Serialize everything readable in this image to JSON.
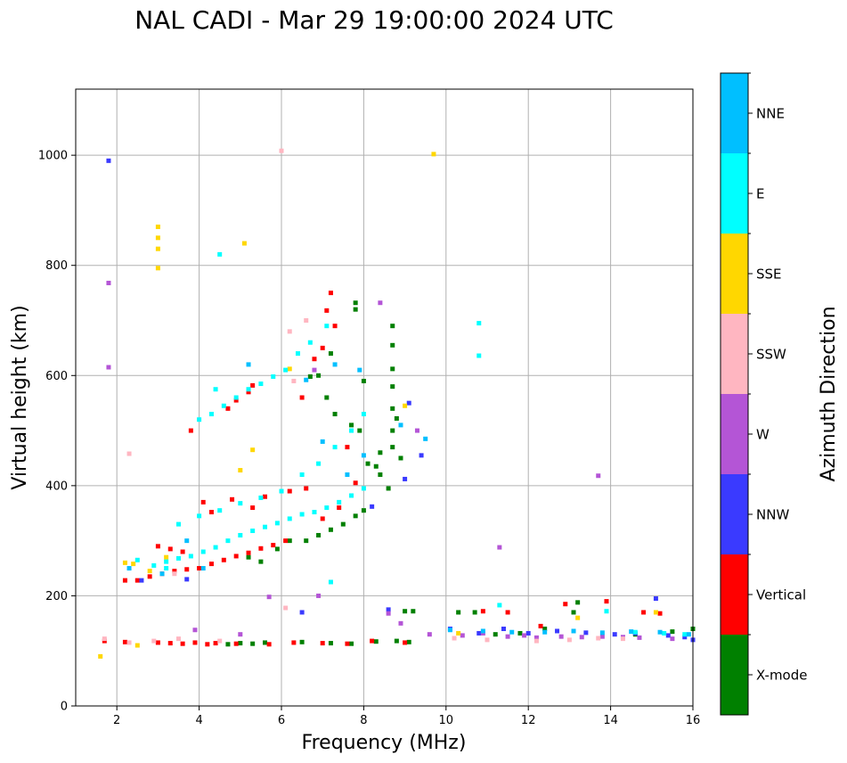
{
  "chart_data": {
    "type": "scatter",
    "title": "NAL CADI - Mar 29 19:00:00 2024 UTC",
    "xlabel": "Frequency (MHz)",
    "ylabel": "Virtual height (km)",
    "xlim": [
      1,
      16
    ],
    "ylim": [
      0,
      1120
    ],
    "xticks": [
      2,
      4,
      6,
      8,
      10,
      12,
      14,
      16
    ],
    "yticks": [
      0,
      200,
      400,
      600,
      800,
      1000
    ],
    "grid": true,
    "colorbar": {
      "title": "Azimuth Direction",
      "categories": [
        {
          "name": "X-mode",
          "color": "#008000"
        },
        {
          "name": "Vertical",
          "color": "#ff0000"
        },
        {
          "name": "NNW",
          "color": "#3a3aff"
        },
        {
          "name": "W",
          "color": "#b455d6"
        },
        {
          "name": "SSW",
          "color": "#ffb6c1"
        },
        {
          "name": "SSE",
          "color": "#ffd700"
        },
        {
          "name": "E",
          "color": "#00ffff"
        },
        {
          "name": "NNE",
          "color": "#00bfff"
        }
      ]
    },
    "series": [
      {
        "name": "X-mode",
        "color": "#008000",
        "points": [
          [
            4.7,
            112
          ],
          [
            5.0,
            114
          ],
          [
            5.3,
            113
          ],
          [
            5.6,
            115
          ],
          [
            6.5,
            116
          ],
          [
            7.2,
            114
          ],
          [
            7.7,
            113
          ],
          [
            8.3,
            117
          ],
          [
            8.8,
            118
          ],
          [
            9.1,
            116
          ],
          [
            5.2,
            270
          ],
          [
            5.5,
            262
          ],
          [
            5.9,
            285
          ],
          [
            6.2,
            300
          ],
          [
            6.6,
            300
          ],
          [
            6.9,
            310
          ],
          [
            7.2,
            320
          ],
          [
            7.5,
            330
          ],
          [
            7.8,
            345
          ],
          [
            8.0,
            355
          ],
          [
            6.7,
            598
          ],
          [
            6.9,
            600
          ],
          [
            7.2,
            640
          ],
          [
            7.8,
            732
          ],
          [
            7.8,
            720
          ],
          [
            8.0,
            590
          ],
          [
            8.3,
            435
          ],
          [
            8.4,
            420
          ],
          [
            8.6,
            395
          ],
          [
            8.7,
            470
          ],
          [
            8.7,
            500
          ],
          [
            8.7,
            540
          ],
          [
            8.7,
            580
          ],
          [
            8.7,
            612
          ],
          [
            8.7,
            655
          ],
          [
            8.7,
            690
          ],
          [
            8.8,
            522
          ],
          [
            8.9,
            450
          ],
          [
            9.0,
            172
          ],
          [
            9.2,
            172
          ],
          [
            10.3,
            170
          ],
          [
            10.7,
            170
          ],
          [
            11.2,
            130
          ],
          [
            11.8,
            132
          ],
          [
            12.4,
            140
          ],
          [
            13.1,
            170
          ],
          [
            13.2,
            188
          ],
          [
            14.6,
            130
          ],
          [
            15.5,
            135
          ],
          [
            16.0,
            140
          ],
          [
            7.1,
            560
          ],
          [
            7.3,
            530
          ],
          [
            7.7,
            510
          ],
          [
            7.9,
            500
          ],
          [
            8.4,
            460
          ],
          [
            8.1,
            440
          ]
        ]
      },
      {
        "name": "Vertical",
        "color": "#ff0000",
        "points": [
          [
            1.7,
            118
          ],
          [
            2.2,
            116
          ],
          [
            3.0,
            115
          ],
          [
            3.3,
            114
          ],
          [
            3.6,
            113
          ],
          [
            3.9,
            115
          ],
          [
            4.2,
            112
          ],
          [
            4.4,
            114
          ],
          [
            4.9,
            113
          ],
          [
            5.7,
            112
          ],
          [
            6.3,
            115
          ],
          [
            7.0,
            114
          ],
          [
            7.6,
            113
          ],
          [
            8.2,
            118
          ],
          [
            9.0,
            115
          ],
          [
            2.2,
            228
          ],
          [
            2.5,
            228
          ],
          [
            2.8,
            235
          ],
          [
            3.1,
            240
          ],
          [
            3.4,
            245
          ],
          [
            3.7,
            248
          ],
          [
            4.0,
            250
          ],
          [
            4.3,
            258
          ],
          [
            4.6,
            265
          ],
          [
            4.9,
            272
          ],
          [
            5.2,
            278
          ],
          [
            5.5,
            286
          ],
          [
            5.8,
            292
          ],
          [
            6.1,
            300
          ],
          [
            3.0,
            290
          ],
          [
            3.3,
            285
          ],
          [
            3.6,
            280
          ],
          [
            4.1,
            370
          ],
          [
            4.3,
            352
          ],
          [
            4.8,
            375
          ],
          [
            5.3,
            360
          ],
          [
            5.6,
            380
          ],
          [
            6.2,
            390
          ],
          [
            6.6,
            395
          ],
          [
            7.0,
            340
          ],
          [
            7.4,
            360
          ],
          [
            7.8,
            405
          ],
          [
            3.8,
            500
          ],
          [
            4.7,
            540
          ],
          [
            4.9,
            555
          ],
          [
            5.2,
            570
          ],
          [
            5.3,
            582
          ],
          [
            6.5,
            560
          ],
          [
            6.8,
            630
          ],
          [
            7.0,
            650
          ],
          [
            7.1,
            718
          ],
          [
            7.3,
            690
          ],
          [
            7.6,
            470
          ],
          [
            7.2,
            750
          ],
          [
            12.9,
            185
          ],
          [
            13.9,
            190
          ],
          [
            14.8,
            170
          ],
          [
            15.2,
            168
          ],
          [
            12.3,
            145
          ],
          [
            11.5,
            170
          ],
          [
            10.9,
            172
          ]
        ]
      },
      {
        "name": "NNW",
        "color": "#3a3aff",
        "points": [
          [
            1.8,
            990
          ],
          [
            2.6,
            228
          ],
          [
            3.7,
            230
          ],
          [
            8.6,
            175
          ],
          [
            9.1,
            550
          ],
          [
            9.0,
            412
          ],
          [
            9.4,
            455
          ],
          [
            10.1,
            140
          ],
          [
            10.8,
            132
          ],
          [
            11.4,
            140
          ],
          [
            12.0,
            132
          ],
          [
            12.7,
            136
          ],
          [
            13.4,
            133
          ],
          [
            14.1,
            130
          ],
          [
            14.6,
            132
          ],
          [
            15.1,
            195
          ],
          [
            15.4,
            128
          ],
          [
            15.8,
            125
          ],
          [
            16.0,
            120
          ],
          [
            6.5,
            170
          ],
          [
            8.2,
            362
          ]
        ]
      },
      {
        "name": "W",
        "color": "#b455d6",
        "points": [
          [
            1.8,
            768
          ],
          [
            1.8,
            615
          ],
          [
            3.9,
            138
          ],
          [
            5.7,
            198
          ],
          [
            6.9,
            200
          ],
          [
            8.6,
            168
          ],
          [
            8.9,
            150
          ],
          [
            9.3,
            500
          ],
          [
            9.6,
            130
          ],
          [
            10.4,
            128
          ],
          [
            10.9,
            132
          ],
          [
            11.5,
            126
          ],
          [
            11.9,
            128
          ],
          [
            12.2,
            124
          ],
          [
            12.8,
            126
          ],
          [
            13.3,
            125
          ],
          [
            13.8,
            126
          ],
          [
            14.3,
            125
          ],
          [
            14.7,
            124
          ],
          [
            15.5,
            122
          ],
          [
            11.3,
            288
          ],
          [
            13.7,
            418
          ],
          [
            8.4,
            732
          ],
          [
            5.0,
            130
          ],
          [
            6.8,
            610
          ]
        ]
      },
      {
        "name": "SSW",
        "color": "#ffb6c1",
        "points": [
          [
            1.7,
            122
          ],
          [
            2.3,
            115
          ],
          [
            2.9,
            118
          ],
          [
            3.5,
            122
          ],
          [
            4.5,
            118
          ],
          [
            6.0,
            1008
          ],
          [
            6.2,
            680
          ],
          [
            6.6,
            700
          ],
          [
            10.2,
            123
          ],
          [
            11.0,
            120
          ],
          [
            12.2,
            118
          ],
          [
            13.0,
            120
          ],
          [
            13.7,
            123
          ],
          [
            14.3,
            122
          ],
          [
            2.3,
            458
          ],
          [
            6.1,
            178
          ],
          [
            6.3,
            590
          ],
          [
            3.4,
            240
          ]
        ]
      },
      {
        "name": "SSE",
        "color": "#ffd700",
        "points": [
          [
            1.6,
            90
          ],
          [
            2.4,
            258
          ],
          [
            2.8,
            245
          ],
          [
            3.0,
            870
          ],
          [
            3.0,
            850
          ],
          [
            3.0,
            830
          ],
          [
            3.0,
            795
          ],
          [
            5.1,
            840
          ],
          [
            9.7,
            1002
          ],
          [
            5.0,
            428
          ],
          [
            5.3,
            465
          ],
          [
            9.0,
            545
          ],
          [
            6.2,
            612
          ],
          [
            2.5,
            110
          ],
          [
            3.2,
            270
          ],
          [
            10.3,
            132
          ],
          [
            15.1,
            170
          ],
          [
            2.2,
            260
          ],
          [
            13.2,
            160
          ]
        ]
      },
      {
        "name": "E",
        "color": "#00ffff",
        "points": [
          [
            2.5,
            265
          ],
          [
            2.9,
            255
          ],
          [
            3.2,
            262
          ],
          [
            3.5,
            268
          ],
          [
            3.8,
            272
          ],
          [
            4.1,
            280
          ],
          [
            4.4,
            288
          ],
          [
            4.7,
            300
          ],
          [
            5.0,
            310
          ],
          [
            5.3,
            318
          ],
          [
            5.6,
            325
          ],
          [
            5.9,
            332
          ],
          [
            6.2,
            340
          ],
          [
            6.5,
            348
          ],
          [
            6.8,
            352
          ],
          [
            7.1,
            360
          ],
          [
            7.4,
            370
          ],
          [
            7.7,
            382
          ],
          [
            8.0,
            395
          ],
          [
            3.5,
            330
          ],
          [
            4.0,
            345
          ],
          [
            4.5,
            355
          ],
          [
            5.0,
            368
          ],
          [
            5.5,
            378
          ],
          [
            6.0,
            390
          ],
          [
            6.5,
            420
          ],
          [
            6.9,
            440
          ],
          [
            7.3,
            470
          ],
          [
            7.7,
            500
          ],
          [
            8.0,
            530
          ],
          [
            4.0,
            520
          ],
          [
            4.3,
            530
          ],
          [
            4.6,
            545
          ],
          [
            4.9,
            560
          ],
          [
            5.2,
            575
          ],
          [
            5.5,
            585
          ],
          [
            5.8,
            598
          ],
          [
            6.1,
            610
          ],
          [
            4.4,
            575
          ],
          [
            4.5,
            820
          ],
          [
            6.4,
            640
          ],
          [
            6.7,
            660
          ],
          [
            7.1,
            690
          ],
          [
            10.8,
            695
          ],
          [
            10.8,
            636
          ],
          [
            7.2,
            225
          ],
          [
            3.2,
            250
          ],
          [
            13.9,
            172
          ],
          [
            14.6,
            134
          ],
          [
            15.3,
            132
          ],
          [
            15.8,
            130
          ],
          [
            11.3,
            183
          ]
        ]
      },
      {
        "name": "NNE",
        "color": "#00bfff",
        "points": [
          [
            2.3,
            250
          ],
          [
            3.1,
            240
          ],
          [
            3.7,
            300
          ],
          [
            4.1,
            250
          ],
          [
            5.2,
            620
          ],
          [
            6.6,
            592
          ],
          [
            7.3,
            620
          ],
          [
            7.9,
            610
          ],
          [
            8.9,
            510
          ],
          [
            9.5,
            485
          ],
          [
            10.1,
            138
          ],
          [
            10.9,
            136
          ],
          [
            11.6,
            134
          ],
          [
            12.4,
            134
          ],
          [
            13.1,
            136
          ],
          [
            13.8,
            133
          ],
          [
            14.5,
            135
          ],
          [
            15.2,
            134
          ],
          [
            15.9,
            130
          ],
          [
            7.0,
            480
          ],
          [
            7.6,
            420
          ],
          [
            8.0,
            455
          ]
        ]
      }
    ]
  }
}
